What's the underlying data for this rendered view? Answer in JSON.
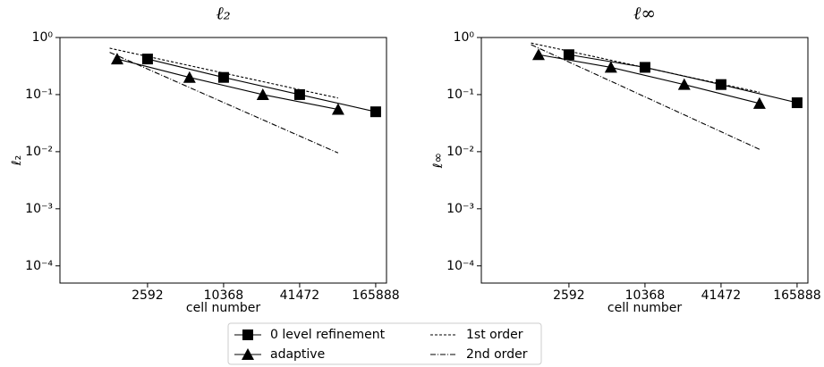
{
  "chart_data": [
    {
      "type": "line",
      "title": "ℓ₂",
      "xlabel": "cell number",
      "ylabel": "ℓ₂",
      "xscale": "log",
      "yscale": "log",
      "xlim": [
        525,
        202000
      ],
      "ylim": [
        5e-05,
        1
      ],
      "xticks": [
        2592,
        10368,
        41472,
        165888
      ],
      "yticks": [
        {
          "value": 1,
          "label": "10⁰"
        },
        {
          "value": 0.1,
          "label": "10⁻¹"
        },
        {
          "value": 0.01,
          "label": "10⁻²"
        },
        {
          "value": 0.001,
          "label": "10⁻³"
        },
        {
          "value": 0.0001,
          "label": "10⁻⁴"
        }
      ],
      "series": [
        {
          "name": "0 level refinement",
          "color": "#000000",
          "marker": "square",
          "dash": "solid",
          "x": [
            2592,
            10368,
            41472,
            165888
          ],
          "values": [
            0.42,
            0.2,
            0.1,
            0.05
          ]
        },
        {
          "name": "adaptive",
          "color": "#000000",
          "marker": "triangle",
          "dash": "solid",
          "x": [
            1490,
            5570,
            21200,
            83600
          ],
          "values": [
            0.42,
            0.2,
            0.1,
            0.055
          ]
        },
        {
          "name": "1st order",
          "color": "#000000",
          "marker": "none",
          "dash": "dashed",
          "x": [
            1300,
            83600
          ],
          "values": [
            0.65,
            0.087
          ]
        },
        {
          "name": "2nd order",
          "color": "#000000",
          "marker": "none",
          "dash": "dashdot",
          "x": [
            1300,
            83600
          ],
          "values": [
            0.55,
            0.0095
          ]
        }
      ]
    },
    {
      "type": "line",
      "title": "ℓ∞",
      "xlabel": "cell number",
      "ylabel": "ℓ∞",
      "xscale": "log",
      "yscale": "log",
      "xlim": [
        525,
        202000
      ],
      "ylim": [
        5e-05,
        1
      ],
      "xticks": [
        2592,
        10368,
        41472,
        165888
      ],
      "yticks": [
        {
          "value": 1,
          "label": "10⁰"
        },
        {
          "value": 0.1,
          "label": "10⁻¹"
        },
        {
          "value": 0.01,
          "label": "10⁻²"
        },
        {
          "value": 0.001,
          "label": "10⁻³"
        },
        {
          "value": 0.0001,
          "label": "10⁻⁴"
        }
      ],
      "series": [
        {
          "name": "0 level refinement",
          "color": "#000000",
          "marker": "square",
          "dash": "solid",
          "x": [
            2592,
            10368,
            41472,
            165888
          ],
          "values": [
            0.5,
            0.3,
            0.15,
            0.072
          ]
        },
        {
          "name": "adaptive",
          "color": "#000000",
          "marker": "triangle",
          "dash": "solid",
          "x": [
            1490,
            5570,
            21200,
            83600
          ],
          "values": [
            0.5,
            0.3,
            0.15,
            0.07
          ]
        },
        {
          "name": "1st order",
          "color": "#000000",
          "marker": "none",
          "dash": "dashed",
          "x": [
            1300,
            83600
          ],
          "values": [
            0.8,
            0.11
          ]
        },
        {
          "name": "2nd order",
          "color": "#000000",
          "marker": "none",
          "dash": "dashdot",
          "x": [
            1300,
            83600
          ],
          "values": [
            0.75,
            0.011
          ]
        }
      ]
    }
  ]
}
